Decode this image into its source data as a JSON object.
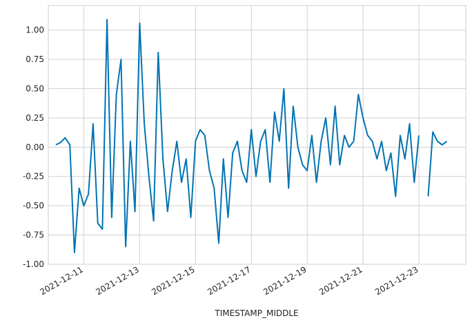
{
  "chart_data": {
    "type": "line",
    "xlabel": "TIMESTAMP_MIDDLE",
    "x": [
      "2021-12-10T00:00",
      "2021-12-10T04:00",
      "2021-12-10T08:00",
      "2021-12-10T12:00",
      "2021-12-10T16:00",
      "2021-12-10T20:00",
      "2021-12-11T00:00",
      "2021-12-11T04:00",
      "2021-12-11T08:00",
      "2021-12-11T12:00",
      "2021-12-11T16:00",
      "2021-12-11T20:00",
      "2021-12-12T00:00",
      "2021-12-12T04:00",
      "2021-12-12T08:00",
      "2021-12-12T12:00",
      "2021-12-12T16:00",
      "2021-12-12T20:00",
      "2021-12-13T00:00",
      "2021-12-13T04:00",
      "2021-12-13T08:00",
      "2021-12-13T12:00",
      "2021-12-13T16:00",
      "2021-12-13T20:00",
      "2021-12-14T00:00",
      "2021-12-14T04:00",
      "2021-12-14T08:00",
      "2021-12-14T12:00",
      "2021-12-14T16:00",
      "2021-12-14T20:00",
      "2021-12-15T00:00",
      "2021-12-15T04:00",
      "2021-12-15T08:00",
      "2021-12-15T12:00",
      "2021-12-15T16:00",
      "2021-12-15T20:00",
      "2021-12-16T00:00",
      "2021-12-16T04:00",
      "2021-12-16T08:00",
      "2021-12-16T12:00",
      "2021-12-16T16:00",
      "2021-12-16T20:00",
      "2021-12-17T00:00",
      "2021-12-17T04:00",
      "2021-12-17T08:00",
      "2021-12-17T12:00",
      "2021-12-17T16:00",
      "2021-12-17T20:00",
      "2021-12-18T00:00",
      "2021-12-18T04:00",
      "2021-12-18T08:00",
      "2021-12-18T12:00",
      "2021-12-18T16:00",
      "2021-12-18T20:00",
      "2021-12-19T00:00",
      "2021-12-19T04:00",
      "2021-12-19T08:00",
      "2021-12-19T12:00",
      "2021-12-19T16:00",
      "2021-12-19T20:00",
      "2021-12-20T00:00",
      "2021-12-20T04:00",
      "2021-12-20T08:00",
      "2021-12-20T12:00",
      "2021-12-20T16:00",
      "2021-12-20T20:00",
      "2021-12-21T00:00",
      "2021-12-21T04:00",
      "2021-12-21T08:00",
      "2021-12-21T12:00",
      "2021-12-21T16:00",
      "2021-12-21T20:00",
      "2021-12-22T00:00",
      "2021-12-22T04:00",
      "2021-12-22T08:00",
      "2021-12-22T12:00",
      "2021-12-22T16:00",
      "2021-12-22T20:00",
      "2021-12-23T00:00",
      "2021-12-23T04:00",
      "2021-12-23T08:00",
      "2021-12-23T12:00",
      "2021-12-23T16:00",
      "2021-12-23T20:00",
      "2021-12-24T00:00"
    ],
    "series": [
      {
        "color": "#0173b2",
        "values": [
          0.02,
          0.04,
          0.08,
          0.02,
          -0.9,
          -0.35,
          -0.5,
          -0.4,
          0.2,
          -0.65,
          -0.7,
          1.09,
          -0.6,
          0.45,
          0.75,
          -0.85,
          0.05,
          -0.55,
          1.06,
          0.2,
          -0.25,
          -0.63,
          0.81,
          -0.1,
          -0.55,
          -0.2,
          0.05,
          -0.3,
          -0.1,
          -0.6,
          0.05,
          0.15,
          0.1,
          -0.2,
          -0.35,
          -0.82,
          -0.1,
          -0.6,
          -0.05,
          0.05,
          -0.2,
          -0.3,
          0.15,
          -0.25,
          0.05,
          0.15,
          -0.3,
          0.3,
          0.05,
          0.5,
          -0.35,
          0.35,
          0.0,
          -0.15,
          -0.2,
          0.1,
          -0.3,
          0.05,
          0.25,
          -0.15,
          0.35,
          -0.15,
          0.1,
          0.0,
          0.05,
          0.45,
          0.25,
          0.1,
          0.05,
          -0.1,
          0.05,
          -0.2,
          -0.05,
          -0.42,
          0.1,
          -0.1,
          0.2,
          -0.3,
          0.1,
          null,
          -0.42,
          0.13,
          0.05,
          0.02,
          0.05
        ]
      }
    ],
    "xlim": [
      "2021-12-09T17:30",
      "2021-12-24T16:20"
    ],
    "xticks": [
      "2021-12-11",
      "2021-12-13",
      "2021-12-15",
      "2021-12-17",
      "2021-12-19",
      "2021-12-21",
      "2021-12-23"
    ],
    "ylim": [
      -1,
      1.21
    ],
    "yticks": [
      {
        "value": -1,
        "label": "-1.00"
      },
      {
        "value": -0.75,
        "label": "-0.75"
      },
      {
        "value": -0.5,
        "label": "-0.50"
      },
      {
        "value": -0.25,
        "label": "-0.25"
      },
      {
        "value": 0,
        "label": "0.00"
      },
      {
        "value": 0.25,
        "label": "0.25"
      },
      {
        "value": 0.5,
        "label": "0.50"
      },
      {
        "value": 0.75,
        "label": "0.75"
      },
      {
        "value": 1,
        "label": "1.00"
      }
    ],
    "grid": true
  }
}
